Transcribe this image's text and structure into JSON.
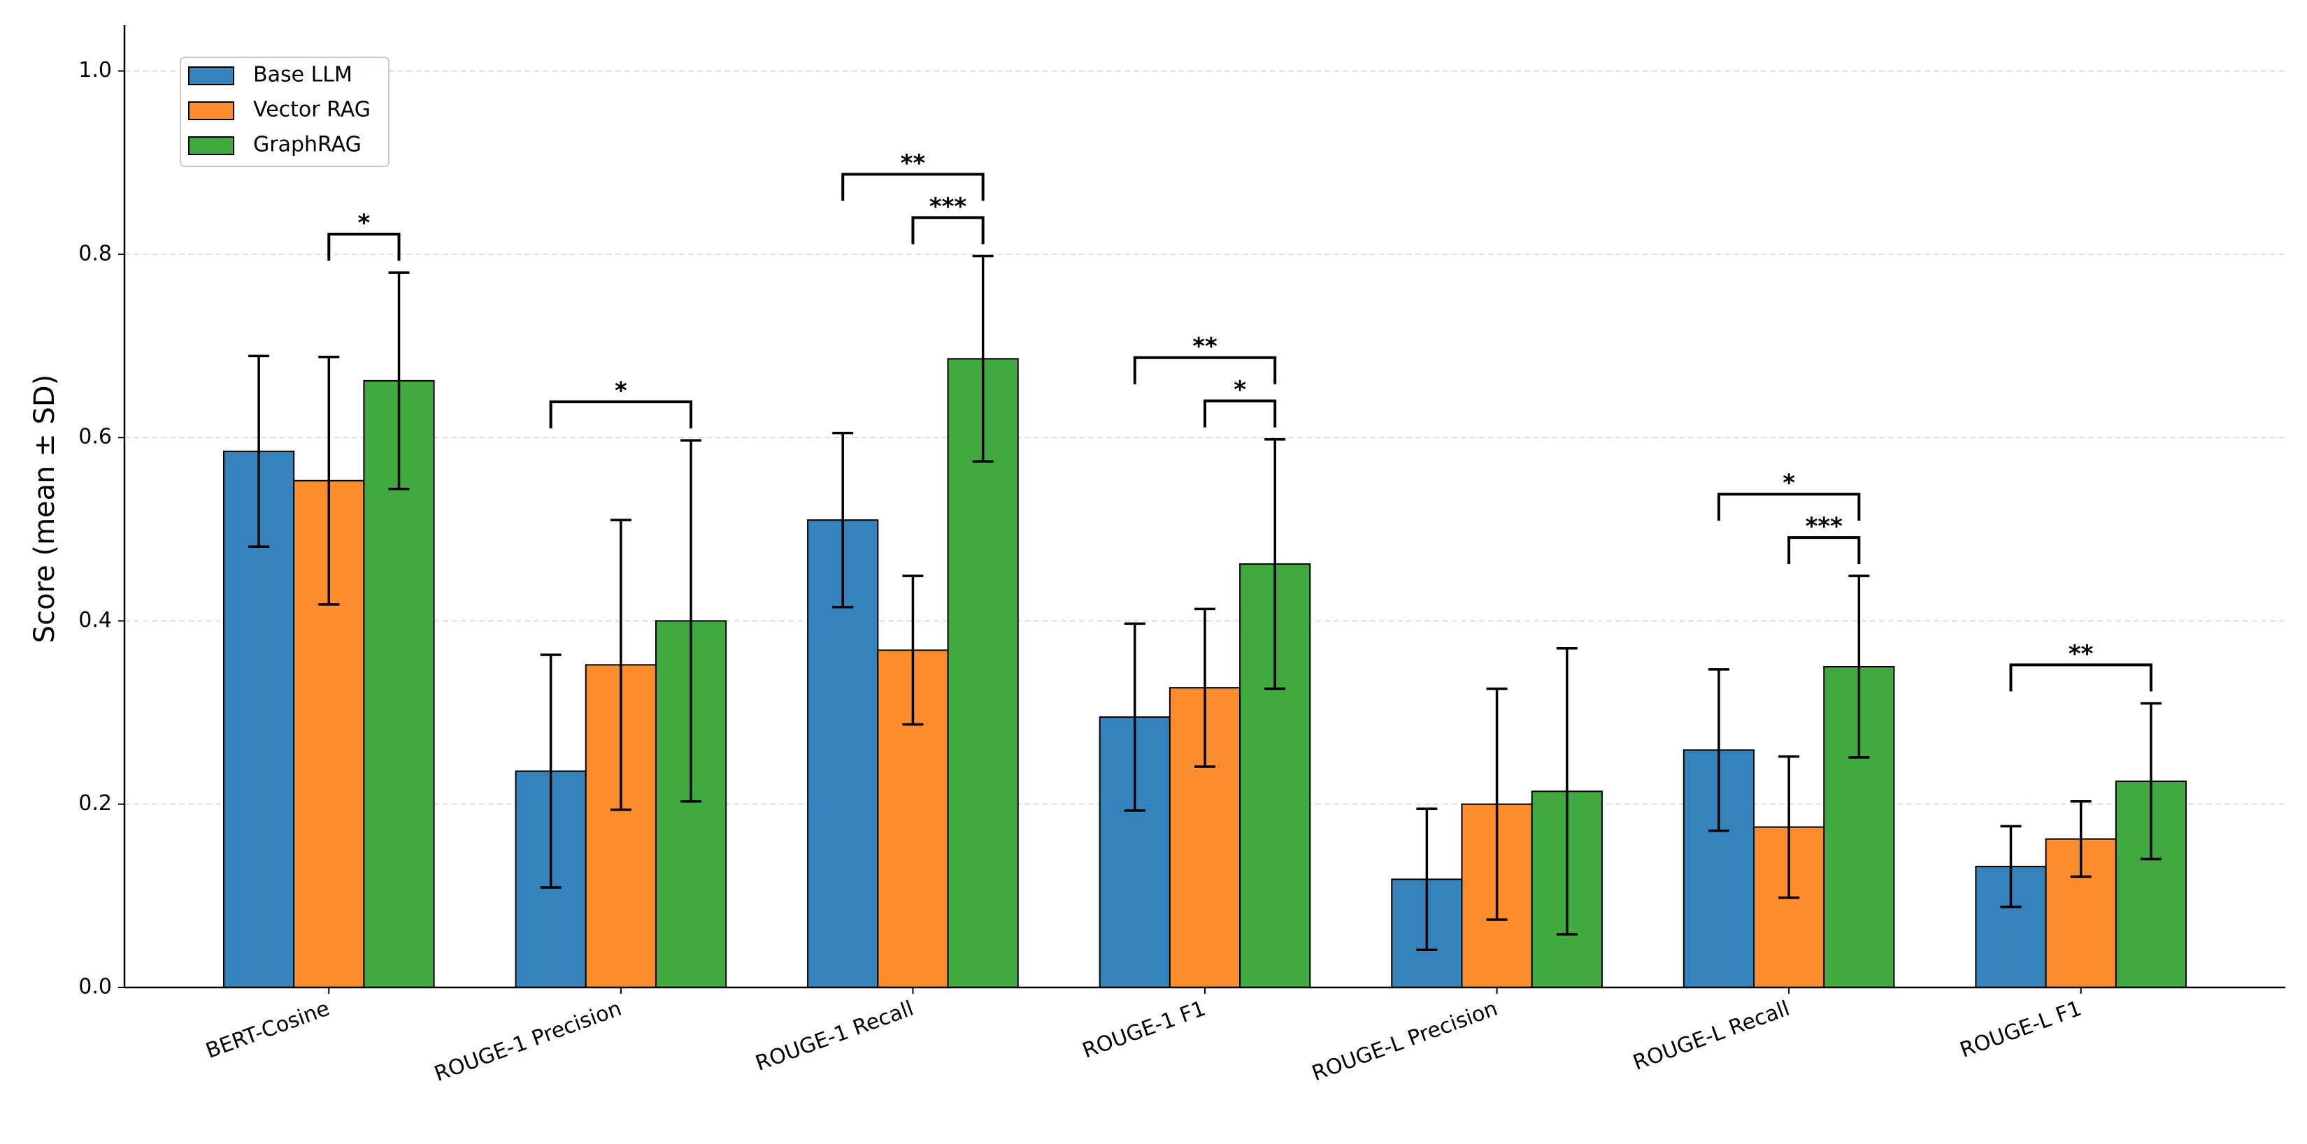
{
  "chart_data": {
    "type": "bar",
    "ylabel": "Score (mean ± SD)",
    "categories": [
      "BERT-Cosine",
      "ROUGE-1 Precision",
      "ROUGE-1 Recall",
      "ROUGE-1 F1",
      "ROUGE-L Precision",
      "ROUGE-L Recall",
      "ROUGE-L F1"
    ],
    "series": [
      {
        "name": "Base LLM",
        "color": "#3583bc",
        "values": [
          0.585,
          0.236,
          0.51,
          0.295,
          0.118,
          0.259,
          0.132
        ],
        "errors": [
          0.104,
          0.127,
          0.095,
          0.102,
          0.077,
          0.088,
          0.044
        ]
      },
      {
        "name": "Vector RAG",
        "color": "#fd8d2c",
        "values": [
          0.553,
          0.352,
          0.368,
          0.327,
          0.2,
          0.175,
          0.162
        ],
        "errors": [
          0.135,
          0.158,
          0.081,
          0.086,
          0.126,
          0.077,
          0.041
        ]
      },
      {
        "name": "GraphRAG",
        "color": "#40a940",
        "values": [
          0.662,
          0.4,
          0.686,
          0.462,
          0.214,
          0.35,
          0.225
        ],
        "errors": [
          0.118,
          0.197,
          0.112,
          0.136,
          0.156,
          0.099,
          0.085
        ]
      }
    ],
    "annotations": [
      {
        "category": "BERT-Cosine",
        "from": "Vector RAG",
        "to": "GraphRAG",
        "label": "*"
      },
      {
        "category": "ROUGE-1 Precision",
        "from": "Base LLM",
        "to": "GraphRAG",
        "label": "*"
      },
      {
        "category": "ROUGE-1 Recall",
        "from": "Vector RAG",
        "to": "GraphRAG",
        "label": "***"
      },
      {
        "category": "ROUGE-1 Recall",
        "from": "Base LLM",
        "to": "GraphRAG",
        "label": "**"
      },
      {
        "category": "ROUGE-1 F1",
        "from": "Vector RAG",
        "to": "GraphRAG",
        "label": "*"
      },
      {
        "category": "ROUGE-1 F1",
        "from": "Base LLM",
        "to": "GraphRAG",
        "label": "**"
      },
      {
        "category": "ROUGE-L Recall",
        "from": "Vector RAG",
        "to": "GraphRAG",
        "label": "***"
      },
      {
        "category": "ROUGE-L Recall",
        "from": "Base LLM",
        "to": "GraphRAG",
        "label": "*"
      },
      {
        "category": "ROUGE-L F1",
        "from": "Base LLM",
        "to": "GraphRAG",
        "label": "**"
      }
    ],
    "ylim": [
      0,
      1.05
    ],
    "yticks": [
      {
        "value": 0,
        "label": "0.0"
      },
      {
        "value": 0.2,
        "label": "0.2"
      },
      {
        "value": 0.4,
        "label": "0.4"
      },
      {
        "value": 0.6,
        "label": "0.6"
      },
      {
        "value": 0.8,
        "label": "0.8"
      },
      {
        "value": 1,
        "label": "1.0"
      }
    ],
    "grid": true,
    "legend": "upper-left"
  }
}
